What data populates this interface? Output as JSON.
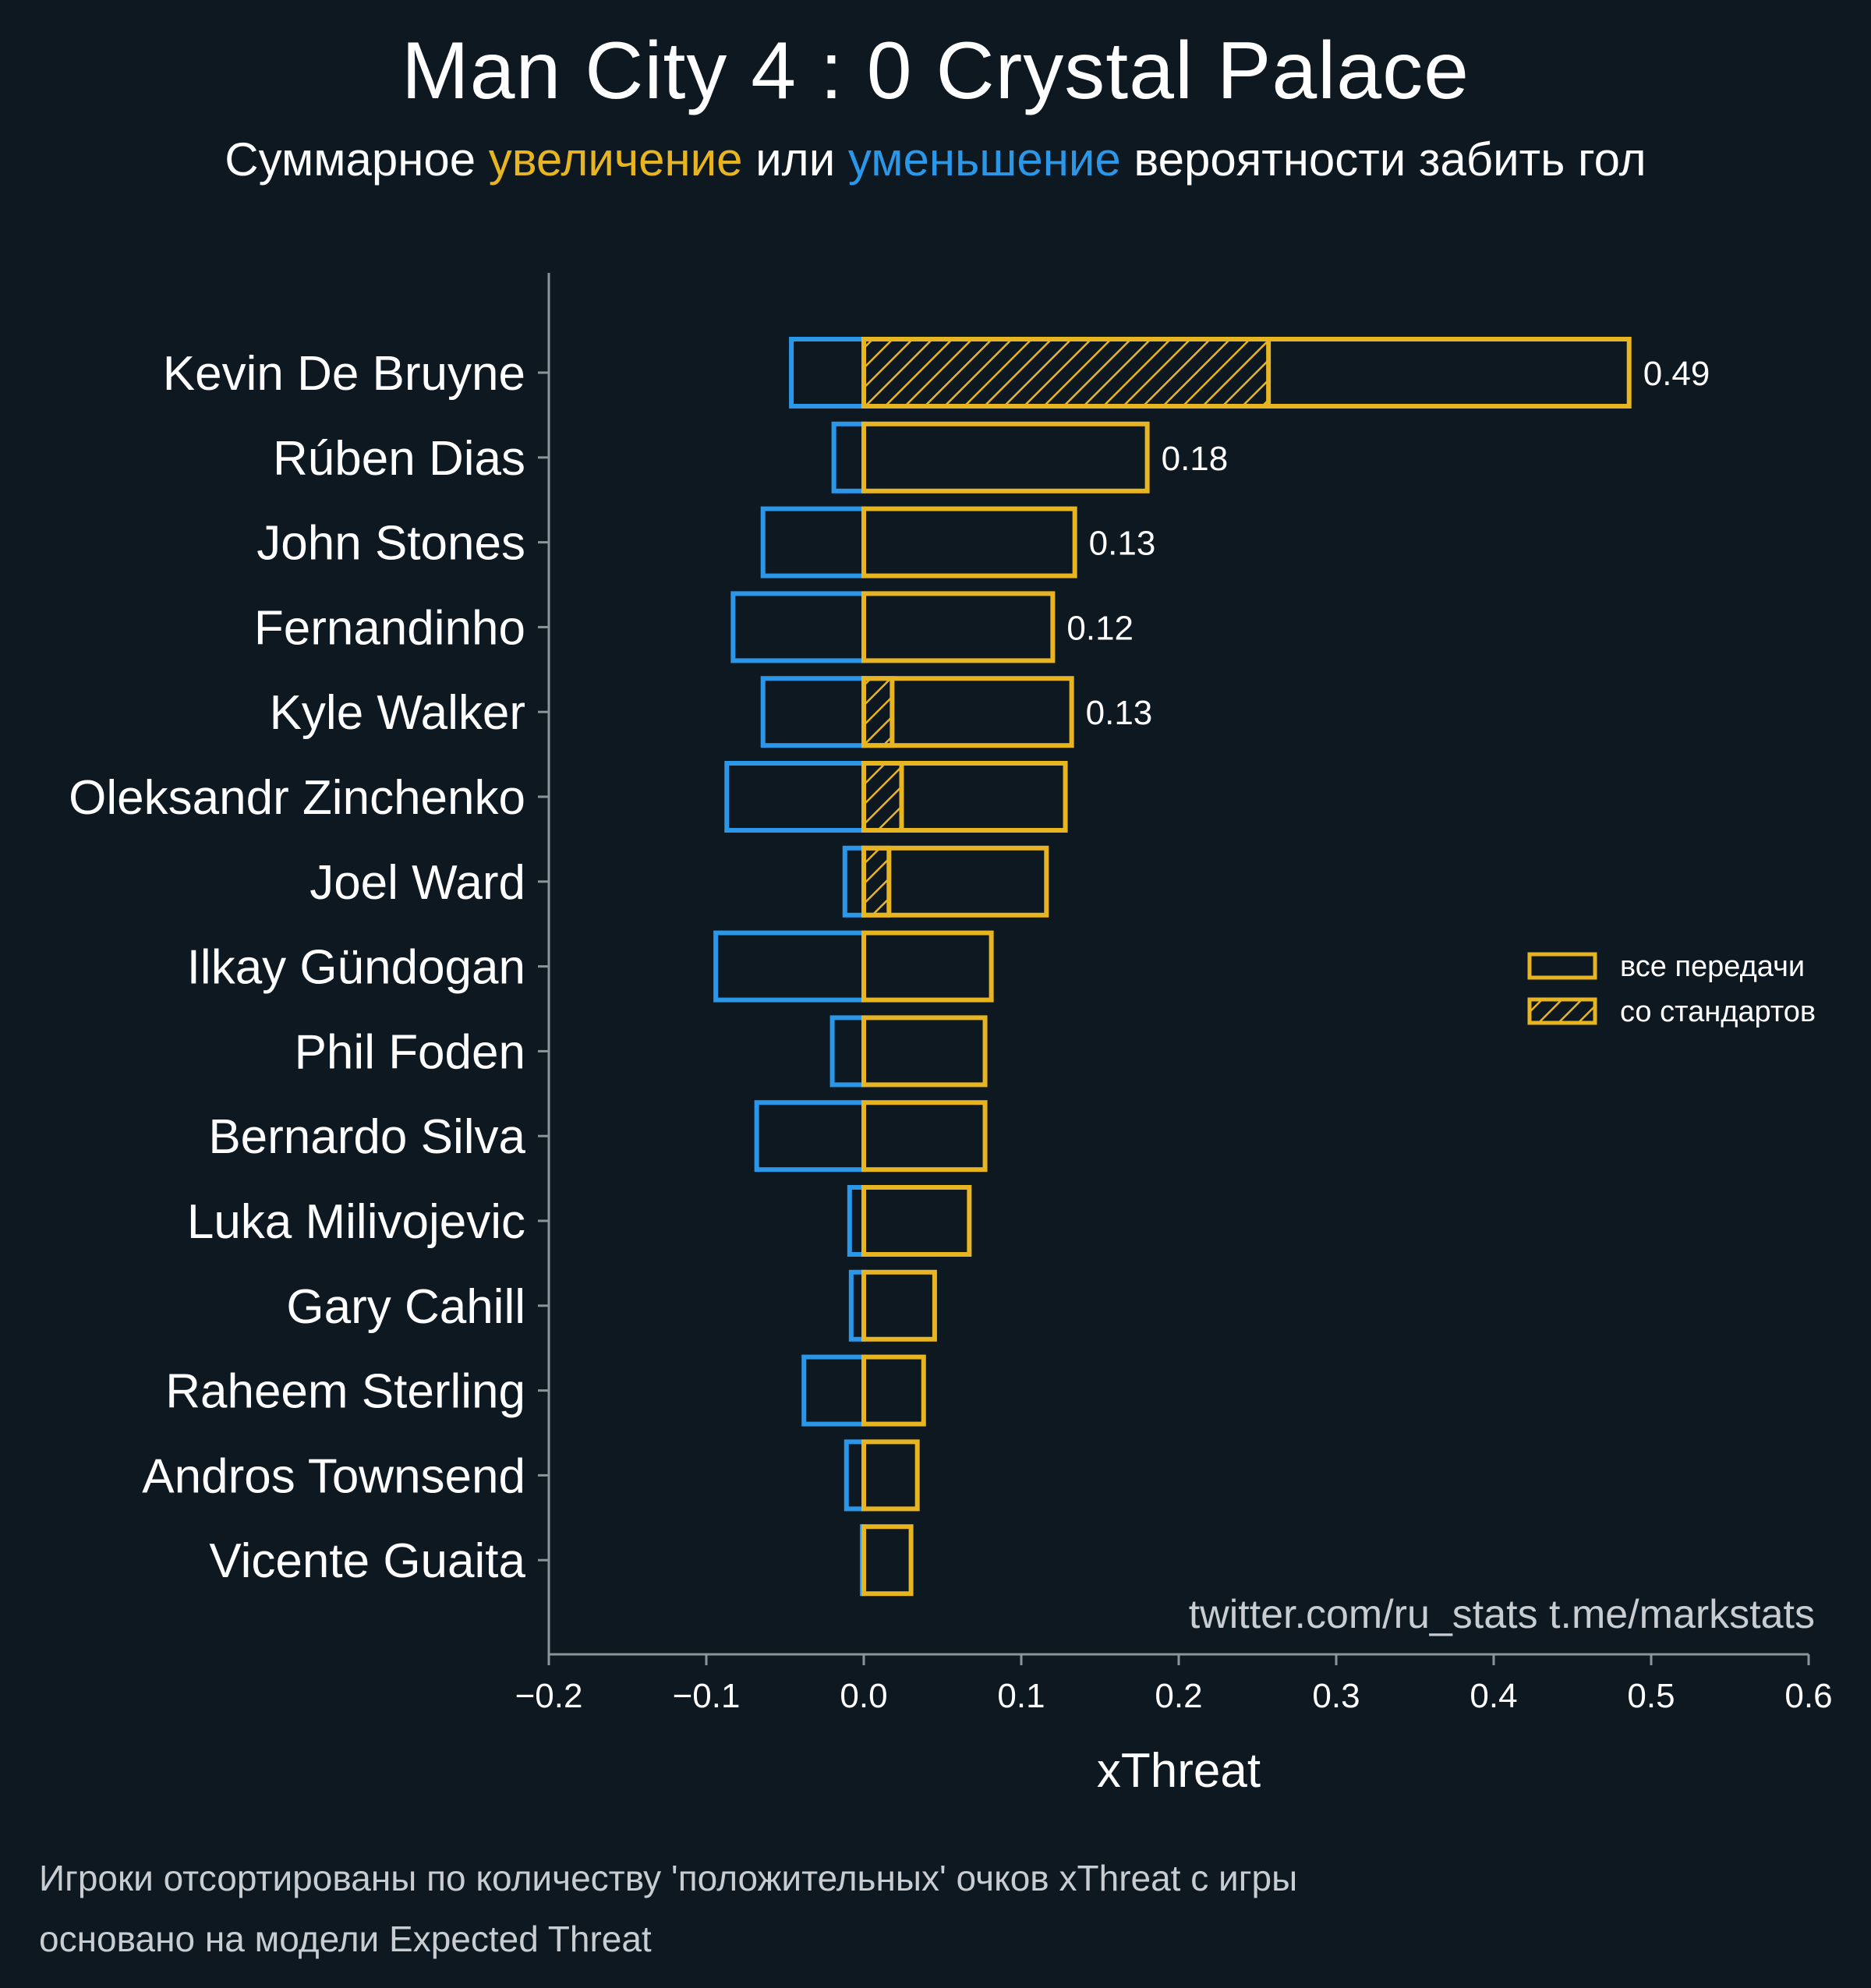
{
  "title": "Man City 4 : 0 Crystal Palace",
  "subtitle": {
    "prefix": "Суммарное ",
    "positive_word": "увеличение",
    "middle": " или ",
    "negative_word": "уменьшение",
    "suffix": " вероятности забить гол"
  },
  "colors": {
    "background": "#0e1821",
    "positive": "#e8b522",
    "negative": "#2b97e8",
    "axis": "#8a9499",
    "text": "#ffffff",
    "muted": "#c8cdd2"
  },
  "watermark": "twitter.com/ru_stats  t.me/markstats",
  "footnotes": [
    "Игроки отсортированы по количеству 'положительных' очков xThreat с игры",
    "основано на модели Expected Threat"
  ],
  "chart_data": {
    "type": "bar",
    "orientation": "horizontal",
    "xlabel": "xThreat",
    "xlim": [
      -0.2,
      0.6
    ],
    "xticks": [
      {
        "value": -0.2,
        "label": "−0.2"
      },
      {
        "value": -0.1,
        "label": "−0.1"
      },
      {
        "value": 0.0,
        "label": "0.0"
      },
      {
        "value": 0.1,
        "label": "0.1"
      },
      {
        "value": 0.2,
        "label": "0.2"
      },
      {
        "value": 0.3,
        "label": "0.3"
      },
      {
        "value": 0.4,
        "label": "0.4"
      },
      {
        "value": 0.5,
        "label": "0.5"
      },
      {
        "value": 0.6,
        "label": "0.6"
      }
    ],
    "legend": {
      "position": "right",
      "entries": [
        {
          "label": "все передачи",
          "style": "outline"
        },
        {
          "label": "со стандартов",
          "style": "hatched"
        }
      ]
    },
    "players": [
      {
        "name": "Kevin De Bruyne",
        "negative": -0.046,
        "positive": 0.486,
        "set_piece": 0.257,
        "label": "0.49"
      },
      {
        "name": "Rúben Dias",
        "negative": -0.019,
        "positive": 0.18,
        "set_piece": 0.0,
        "label": "0.18"
      },
      {
        "name": "John Stones",
        "negative": -0.064,
        "positive": 0.134,
        "set_piece": 0.0,
        "label": "0.13"
      },
      {
        "name": "Fernandinho",
        "negative": -0.083,
        "positive": 0.12,
        "set_piece": 0.0,
        "label": "0.12"
      },
      {
        "name": "Kyle Walker",
        "negative": -0.064,
        "positive": 0.132,
        "set_piece": 0.018,
        "label": "0.13"
      },
      {
        "name": "Oleksandr Zinchenko",
        "negative": -0.087,
        "positive": 0.128,
        "set_piece": 0.024,
        "label": ""
      },
      {
        "name": "Joel Ward",
        "negative": -0.012,
        "positive": 0.116,
        "set_piece": 0.016,
        "label": ""
      },
      {
        "name": "Ilkay Gündogan",
        "negative": -0.094,
        "positive": 0.081,
        "set_piece": 0.0,
        "label": ""
      },
      {
        "name": "Phil Foden",
        "negative": -0.02,
        "positive": 0.077,
        "set_piece": 0.0,
        "label": ""
      },
      {
        "name": "Bernardo Silva",
        "negative": -0.068,
        "positive": 0.077,
        "set_piece": 0.0,
        "label": ""
      },
      {
        "name": "Luka Milivojevic",
        "negative": -0.009,
        "positive": 0.067,
        "set_piece": 0.0,
        "label": ""
      },
      {
        "name": "Gary Cahill",
        "negative": -0.008,
        "positive": 0.045,
        "set_piece": 0.0,
        "label": ""
      },
      {
        "name": "Raheem Sterling",
        "negative": -0.038,
        "positive": 0.038,
        "set_piece": 0.0,
        "label": ""
      },
      {
        "name": "Andros Townsend",
        "negative": -0.011,
        "positive": 0.034,
        "set_piece": 0.0,
        "label": ""
      },
      {
        "name": "Vicente Guaita",
        "negative": -0.001,
        "positive": 0.03,
        "set_piece": 0.0,
        "label": ""
      }
    ]
  }
}
